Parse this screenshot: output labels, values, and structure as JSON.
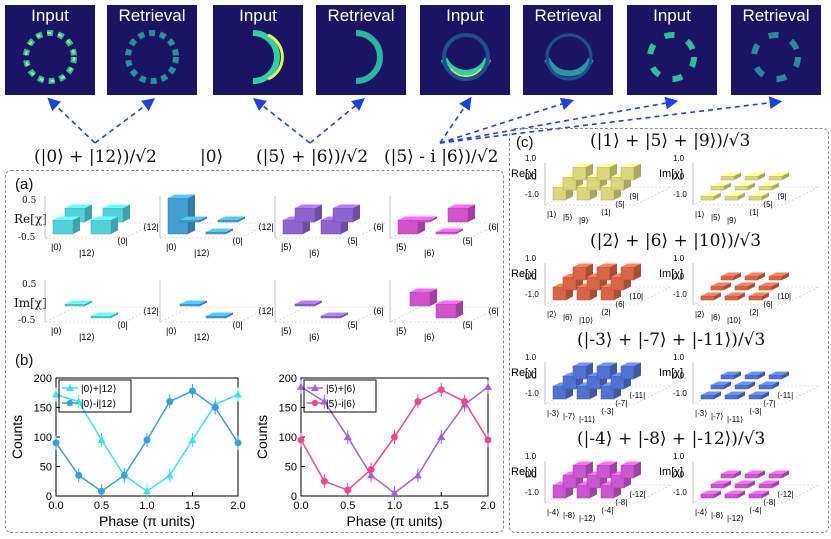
{
  "top_row": {
    "labels": [
      "Input",
      "Retrieval",
      "Input",
      "Retrieval",
      "Input",
      "Retrieval",
      "Input",
      "Retrieval"
    ]
  },
  "states": [
    "(|0⟩ + |12⟩)/√2",
    "|0⟩",
    "(|5⟩ + |6⟩)/√2",
    "(|5⟩ - i |6⟩)/√2"
  ],
  "panel_a": {
    "label": "(a)",
    "re_label": "Re[χ]",
    "im_label": "Im[χ]",
    "tick_top": "0.5",
    "tick_bottom": "-0.5",
    "colors": [
      "#5ce8f0",
      "#4ab0e8",
      "#9b70e8",
      "#e85ce0"
    ],
    "basis": [
      [
        "|0⟩",
        "|12⟩",
        "⟨0|",
        "⟨12|"
      ],
      [
        "|0⟩",
        "|12⟩",
        "⟨0|",
        "⟨12|"
      ],
      [
        "|5⟩",
        "|6⟩",
        "⟨5|",
        "⟨6|"
      ],
      [
        "|5⟩",
        "|6⟩",
        "⟨5|",
        "⟨6|"
      ]
    ]
  },
  "panel_b": {
    "label": "(b)"
  },
  "panel_c": {
    "label": "(c)",
    "titles": [
      "(|1⟩ + |5⟩ + |9⟩)/√3",
      "(|2⟩ + |6⟩ + |10⟩)/√3",
      "(|-3⟩ + |-7⟩ + |-11⟩)/√3",
      "(|-4⟩ + |-8⟩ + |-12⟩)/√3"
    ],
    "re_label": "Re[χ]",
    "im_label": "Im[χ]",
    "ticks": [
      "1.0",
      "0.0",
      "-1.0"
    ],
    "colors": [
      "#f3ee8a",
      "#f07050",
      "#5b7fe8",
      "#e060e8"
    ],
    "basis": [
      [
        "|1⟩",
        "|5⟩",
        "|9⟩",
        "⟨1|",
        "⟨5|",
        "⟨9|"
      ],
      [
        "|2⟩",
        "|6⟩",
        "|10⟩",
        "⟨2|",
        "⟨6|",
        "⟨10|"
      ],
      [
        "|-3⟩",
        "|-7⟩",
        "|-11⟩",
        "⟨-3|",
        "⟨-7|",
        "⟨-11|"
      ],
      [
        "|-4⟩",
        "|-8⟩",
        "|-12⟩",
        "⟨-4|",
        "⟨-8|",
        "⟨-12|"
      ]
    ]
  },
  "chart_data": [
    {
      "type": "line",
      "xlabel": "Phase (π units)",
      "ylabel": "Counts",
      "xlim": [
        0.0,
        2.0
      ],
      "ylim": [
        0,
        200
      ],
      "xticks": [
        "0.0",
        "0.5",
        "1.0",
        "1.5",
        "2.0"
      ],
      "yticks": [
        "0",
        "50",
        "100",
        "150",
        "200"
      ],
      "legend": "top-left",
      "series": [
        {
          "name": "|0⟩+|12⟩",
          "color": "#40e0f0",
          "marker": "triangle",
          "x": [
            0,
            0.25,
            0.5,
            0.75,
            1.0,
            1.25,
            1.5,
            1.75,
            2.0
          ],
          "y": [
            172,
            160,
            95,
            35,
            8,
            35,
            95,
            155,
            172
          ]
        },
        {
          "name": "|0⟩-i|12⟩",
          "color": "#3aa0e0",
          "marker": "circle",
          "x": [
            0,
            0.25,
            0.5,
            0.75,
            1.0,
            1.25,
            1.5,
            1.75,
            2.0
          ],
          "y": [
            90,
            35,
            8,
            35,
            95,
            160,
            178,
            150,
            90
          ]
        }
      ]
    },
    {
      "type": "line",
      "xlabel": "Phase (π units)",
      "ylabel": "Counts",
      "xlim": [
        0.0,
        2.0
      ],
      "ylim": [
        0,
        200
      ],
      "xticks": [
        "0.0",
        "0.5",
        "1.0",
        "1.5",
        "2.0"
      ],
      "yticks": [
        "0",
        "50",
        "100",
        "150",
        "200"
      ],
      "legend": "top-left",
      "series": [
        {
          "name": "|5⟩+|6⟩",
          "color": "#a060e8",
          "marker": "triangle",
          "x": [
            0,
            0.25,
            0.5,
            0.75,
            1.0,
            1.25,
            1.5,
            1.75,
            2.0
          ],
          "y": [
            185,
            160,
            100,
            35,
            5,
            35,
            100,
            155,
            185
          ]
        },
        {
          "name": "|5⟩-i|6⟩",
          "color": "#f04890",
          "marker": "circle",
          "x": [
            0,
            0.25,
            0.5,
            0.75,
            1.0,
            1.25,
            1.5,
            1.75,
            2.0
          ],
          "y": [
            95,
            25,
            10,
            45,
            100,
            160,
            180,
            160,
            95
          ]
        }
      ]
    }
  ]
}
